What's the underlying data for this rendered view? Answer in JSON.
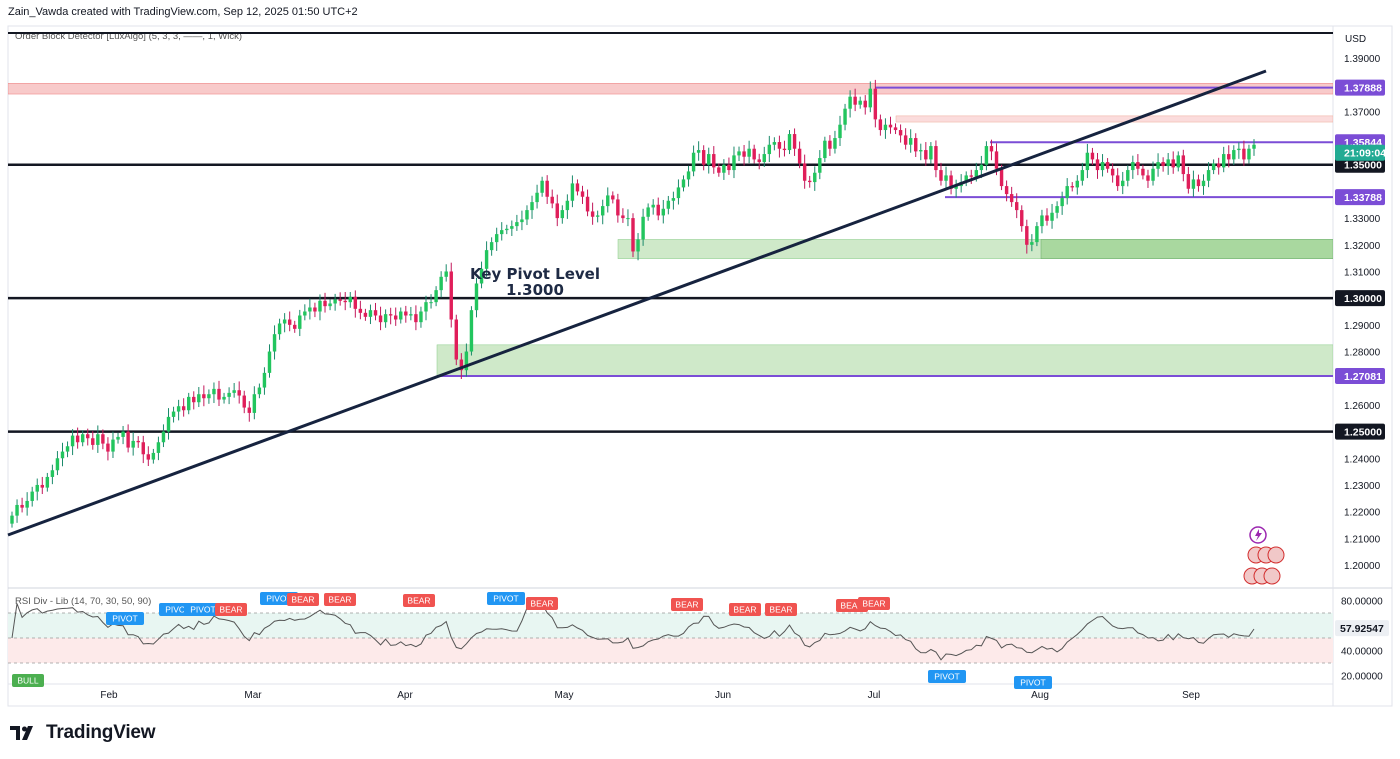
{
  "header": {
    "credit": "Zain_Vawda created with TradingView.com, Sep 12, 2025 01:50 UTC+2"
  },
  "branding": {
    "logo_text": "TradingView",
    "logo_icon": "tradingview-logo-icon"
  },
  "indicators": {
    "main": "Order Block Detector [LuxAlgo] (5, 3, 3, ——, 1, Wick)",
    "rsi": "RSI Div - Lib (14, 70, 30, 50, 90)",
    "rsi_value_tag": "57.92547"
  },
  "chart_data": {
    "type": "candlestick",
    "currency": "USD",
    "x_tick_labels": [
      "Feb",
      "Mar",
      "Apr",
      "May",
      "Jun",
      "Jul",
      "Aug",
      "Sep"
    ],
    "y_tick_labels": [
      "1.39000",
      "1.37000",
      "1.33000",
      "1.32000",
      "1.31000",
      "1.29000",
      "1.28000",
      "1.26000",
      "1.24000",
      "1.23000",
      "1.22000",
      "1.21000",
      "1.20000"
    ],
    "ylim": [
      1.195,
      1.402
    ],
    "horizontal_levels": [
      {
        "value": 1.35,
        "label": "1.35000"
      },
      {
        "value": 1.3,
        "label": "1.30000"
      },
      {
        "value": 1.25,
        "label": "1.25000"
      }
    ],
    "price_tags": [
      {
        "value": 1.37888,
        "label": "1.37888",
        "color": "#7b4dd6"
      },
      {
        "value": 1.35844,
        "label": "1.35844",
        "color": "#7b4dd6"
      },
      {
        "value": 1.33788,
        "label": "1.33788",
        "color": "#7b4dd6"
      },
      {
        "value": 1.27081,
        "label": "1.27081",
        "color": "#7b4dd6"
      }
    ],
    "countdown_tag": "21:09:04",
    "annotation": {
      "line1": "Key Pivot Level",
      "line2": "1.3000"
    },
    "rsi_axis_labels": [
      "80.00000",
      "40.00000",
      "20.00000"
    ],
    "rsi_marker_labels": [
      "BULL",
      "PIVOT",
      "PIVOT",
      "PIVOT",
      "BEAR",
      "PIVOT",
      "BEAR",
      "BEAR",
      "BEAR",
      "PIVOT",
      "BEAR",
      "BEAR",
      "BEAR",
      "BEAR",
      "BEAR",
      "BEAR",
      "PIVOT",
      "PIVOT"
    ],
    "closes": [
      1.2185,
      1.2225,
      1.2215,
      1.224,
      1.2275,
      1.23,
      1.229,
      1.233,
      1.2355,
      1.24,
      1.2425,
      1.2445,
      1.2485,
      1.246,
      1.249,
      1.2475,
      1.245,
      1.249,
      1.2455,
      1.2425,
      1.247,
      1.248,
      1.25,
      1.244,
      1.2465,
      1.246,
      1.2415,
      1.2395,
      1.242,
      1.246,
      1.25,
      1.2555,
      1.2575,
      1.2595,
      1.258,
      1.263,
      1.261,
      1.264,
      1.2625,
      1.264,
      1.266,
      1.262,
      1.263,
      1.2645,
      1.2655,
      1.2635,
      1.259,
      1.257,
      1.264,
      1.2665,
      1.272,
      1.28,
      1.2865,
      1.2905,
      1.292,
      1.29,
      1.2885,
      1.2935,
      1.295,
      1.2965,
      1.295,
      1.299,
      1.297,
      1.298,
      1.2995,
      1.299,
      1.2985,
      1.3005,
      1.296,
      1.2945,
      1.293,
      1.2955,
      1.2935,
      1.291,
      1.294,
      1.2935,
      1.292,
      1.295,
      1.2935,
      1.294,
      1.291,
      1.295,
      1.2985,
      1.2985,
      1.303,
      1.308,
      1.31,
      1.292,
      1.277,
      1.273,
      1.28,
      1.2955,
      1.3055,
      1.311,
      1.318,
      1.321,
      1.324,
      1.3255,
      1.326,
      1.327,
      1.3285,
      1.3295,
      1.333,
      1.336,
      1.3395,
      1.344,
      1.338,
      1.3355,
      1.33,
      1.333,
      1.3365,
      1.343,
      1.34,
      1.338,
      1.3325,
      1.3305,
      1.331,
      1.3345,
      1.3385,
      1.337,
      1.331,
      1.33,
      1.33,
      1.3175,
      1.322,
      1.3305,
      1.334,
      1.335,
      1.331,
      1.3335,
      1.3365,
      1.3375,
      1.3415,
      1.3445,
      1.3475,
      1.3545,
      1.3555,
      1.35,
      1.354,
      1.349,
      1.347,
      1.35,
      1.348,
      1.3535,
      1.355,
      1.353,
      1.356,
      1.352,
      1.351,
      1.354,
      1.3575,
      1.3585,
      1.356,
      1.3555,
      1.3615,
      1.356,
      1.3505,
      1.344,
      1.3435,
      1.347,
      1.3525,
      1.359,
      1.356,
      1.36,
      1.365,
      1.371,
      1.3755,
      1.3725,
      1.374,
      1.3715,
      1.3785,
      1.367,
      1.363,
      1.365,
      1.364,
      1.363,
      1.361,
      1.3575,
      1.36,
      1.355,
      1.3555,
      1.352,
      1.357,
      1.348,
      1.344,
      1.346,
      1.341,
      1.342,
      1.3435,
      1.346,
      1.3455,
      1.348,
      1.35,
      1.357,
      1.355,
      1.3485,
      1.342,
      1.339,
      1.336,
      1.333,
      1.327,
      1.32,
      1.321,
      1.327,
      1.331,
      1.329,
      1.332,
      1.3345,
      1.3375,
      1.342,
      1.3415,
      1.344,
      1.348,
      1.3545,
      1.352,
      1.348,
      1.351,
      1.3485,
      1.346,
      1.342,
      1.344,
      1.348,
      1.351,
      1.3485,
      1.346,
      1.344,
      1.3485,
      1.351,
      1.3495,
      1.352,
      1.349,
      1.3535,
      1.3465,
      1.341,
      1.3445,
      1.342,
      1.344,
      1.348,
      1.3505,
      1.349,
      1.354,
      1.352,
      1.3555,
      1.356,
      1.352,
      1.356,
      1.3575
    ]
  }
}
